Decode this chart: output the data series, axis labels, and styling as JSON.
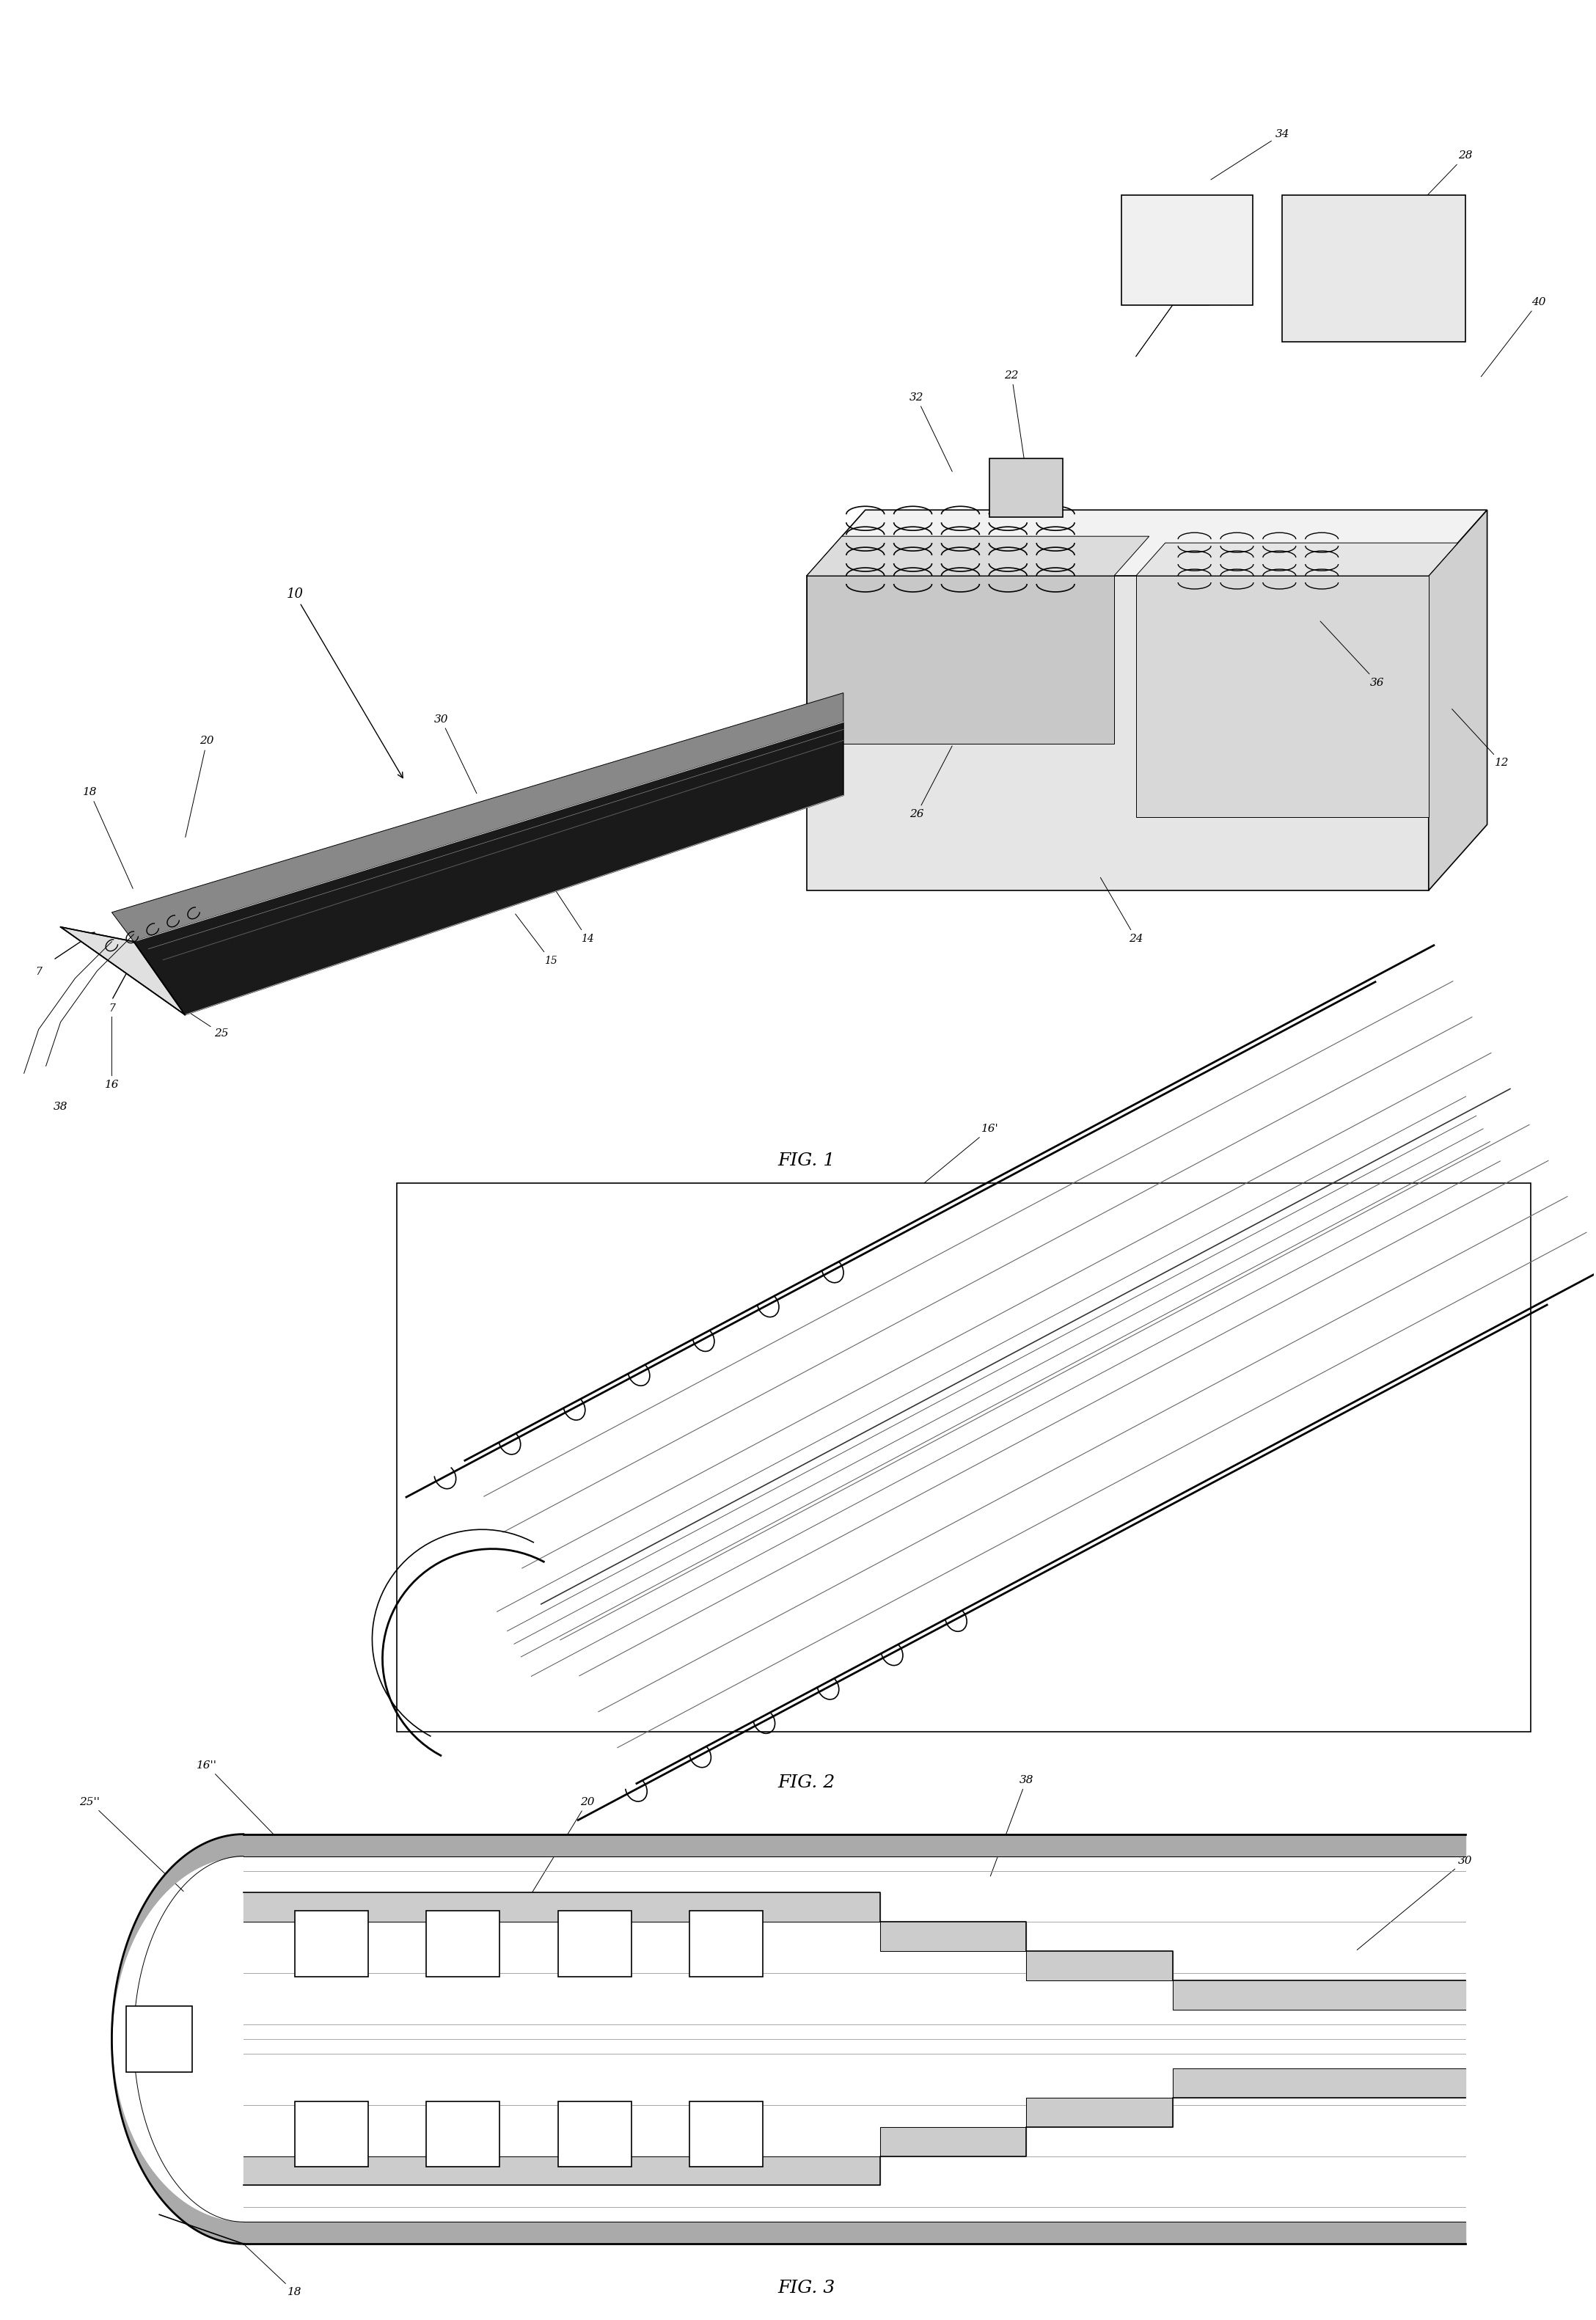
{
  "fig_width": 21.76,
  "fig_height": 31.63,
  "bg_color": "#ffffff",
  "line_color": "#000000",
  "fig1_label": "FIG. 1",
  "fig2_label": "FIG. 2",
  "fig3_label": "FIG. 3"
}
